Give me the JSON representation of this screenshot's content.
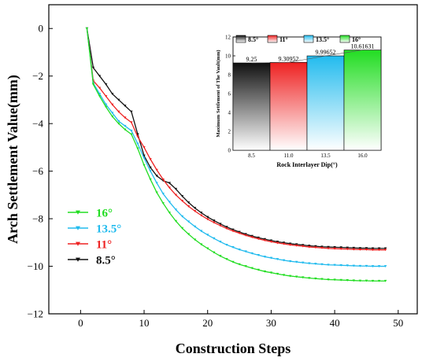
{
  "chart_data": [
    {
      "type": "line",
      "title": "",
      "xlabel": "Construction Steps",
      "ylabel": "Arch Settlement Value(mm)",
      "xlim": [
        -5,
        53
      ],
      "ylim": [
        -12,
        1
      ],
      "xticks": [
        0,
        10,
        20,
        30,
        40,
        50
      ],
      "yticks": [
        0,
        -2,
        -4,
        -6,
        -8,
        -10,
        -12
      ],
      "grid": false,
      "legend": "left",
      "series": [
        {
          "name": "16°",
          "color": "#22dd22",
          "marker": "triangle-down",
          "x": [
            1,
            2,
            3,
            4,
            5,
            6,
            7,
            8,
            9,
            10,
            11,
            12,
            13,
            14,
            15,
            16,
            17,
            18,
            19,
            20,
            21,
            22,
            23,
            24,
            25,
            26,
            27,
            28,
            29,
            30,
            31,
            32,
            33,
            34,
            35,
            36,
            37,
            38,
            39,
            40,
            41,
            42,
            43,
            44,
            45,
            46,
            47,
            48
          ],
          "y": [
            0,
            -2.35,
            -2.85,
            -3.3,
            -3.7,
            -4.0,
            -4.25,
            -4.45,
            -5.05,
            -5.75,
            -6.35,
            -6.9,
            -7.35,
            -7.75,
            -8.1,
            -8.4,
            -8.65,
            -8.88,
            -9.08,
            -9.25,
            -9.42,
            -9.57,
            -9.7,
            -9.82,
            -9.92,
            -10.0,
            -10.08,
            -10.15,
            -10.22,
            -10.27,
            -10.32,
            -10.37,
            -10.41,
            -10.44,
            -10.47,
            -10.5,
            -10.52,
            -10.54,
            -10.56,
            -10.57,
            -10.58,
            -10.59,
            -10.6,
            -10.61,
            -10.61,
            -10.62,
            -10.62,
            -10.62
          ]
        },
        {
          "name": "13.5°",
          "color": "#22bbee",
          "marker": "triangle-down",
          "x": [
            1,
            2,
            3,
            4,
            5,
            6,
            7,
            8,
            9,
            10,
            11,
            12,
            13,
            14,
            15,
            16,
            17,
            18,
            19,
            20,
            21,
            22,
            23,
            24,
            25,
            26,
            27,
            28,
            29,
            30,
            31,
            32,
            33,
            34,
            35,
            36,
            37,
            38,
            39,
            40,
            41,
            42,
            43,
            44,
            45,
            46,
            47,
            48
          ],
          "y": [
            0,
            -2.3,
            -2.75,
            -3.2,
            -3.55,
            -3.9,
            -4.1,
            -4.3,
            -4.85,
            -5.45,
            -6.0,
            -6.5,
            -6.95,
            -7.3,
            -7.62,
            -7.9,
            -8.12,
            -8.33,
            -8.52,
            -8.68,
            -8.83,
            -8.97,
            -9.1,
            -9.2,
            -9.3,
            -9.38,
            -9.46,
            -9.53,
            -9.6,
            -9.65,
            -9.7,
            -9.75,
            -9.79,
            -9.82,
            -9.85,
            -9.88,
            -9.9,
            -9.92,
            -9.94,
            -9.95,
            -9.96,
            -9.97,
            -9.98,
            -9.99,
            -9.99,
            -10.0,
            -10.0,
            -10.0
          ]
        },
        {
          "name": "11°",
          "color": "#ee2222",
          "marker": "triangle-down",
          "x": [
            1,
            2,
            3,
            4,
            5,
            6,
            7,
            8,
            9,
            10,
            11,
            12,
            13,
            14,
            15,
            16,
            17,
            18,
            19,
            20,
            21,
            22,
            23,
            24,
            25,
            26,
            27,
            28,
            29,
            30,
            31,
            32,
            33,
            34,
            35,
            36,
            37,
            38,
            39,
            40,
            41,
            42,
            43,
            44,
            45,
            46,
            47,
            48
          ],
          "y": [
            0,
            -2.2,
            -2.5,
            -2.85,
            -3.2,
            -3.5,
            -3.75,
            -3.95,
            -4.55,
            -5.0,
            -5.5,
            -5.95,
            -6.35,
            -6.7,
            -7.0,
            -7.25,
            -7.48,
            -7.68,
            -7.86,
            -8.02,
            -8.16,
            -8.29,
            -8.41,
            -8.52,
            -8.61,
            -8.7,
            -8.78,
            -8.85,
            -8.91,
            -8.97,
            -9.02,
            -9.06,
            -9.1,
            -9.13,
            -9.16,
            -9.19,
            -9.21,
            -9.23,
            -9.25,
            -9.26,
            -9.27,
            -9.28,
            -9.29,
            -9.3,
            -9.3,
            -9.31,
            -9.31,
            -9.31
          ]
        },
        {
          "name": "8.5°",
          "color": "#111111",
          "marker": "triangle-down",
          "x": [
            1,
            2,
            3,
            4,
            5,
            6,
            7,
            8,
            9,
            10,
            11,
            12,
            13,
            14,
            15,
            16,
            17,
            18,
            19,
            20,
            21,
            22,
            23,
            24,
            25,
            26,
            27,
            28,
            29,
            30,
            31,
            32,
            33,
            34,
            35,
            36,
            37,
            38,
            39,
            40,
            41,
            42,
            43,
            44,
            45,
            46,
            47,
            48
          ],
          "y": [
            0,
            -1.65,
            -2.0,
            -2.35,
            -2.75,
            -3.0,
            -3.25,
            -3.5,
            -4.45,
            -5.35,
            -5.85,
            -6.2,
            -6.4,
            -6.5,
            -6.75,
            -7.05,
            -7.32,
            -7.55,
            -7.75,
            -7.93,
            -8.08,
            -8.22,
            -8.35,
            -8.46,
            -8.56,
            -8.65,
            -8.73,
            -8.8,
            -8.86,
            -8.92,
            -8.97,
            -9.01,
            -9.05,
            -9.08,
            -9.11,
            -9.14,
            -9.16,
            -9.18,
            -9.19,
            -9.2,
            -9.21,
            -9.22,
            -9.23,
            -9.24,
            -9.24,
            -9.25,
            -9.25,
            -9.25
          ]
        }
      ]
    },
    {
      "type": "bar",
      "title": "",
      "xlabel": "Rock Interlayer Dip(°)",
      "ylabel": "Maximum Settlement of The Vault(mm)",
      "ylim": [
        0,
        12
      ],
      "yticks": [
        0,
        2,
        4,
        6,
        8,
        10,
        12
      ],
      "grid": false,
      "legend": "top",
      "categories": [
        "8.5",
        "11.0",
        "13.5",
        "16.0"
      ],
      "legend_labels": [
        "8.5°",
        "11°",
        "13.5°",
        "16°"
      ],
      "values": [
        9.25,
        9.30952,
        9.99652,
        10.61631
      ],
      "value_labels": [
        "9.25",
        "9.30952",
        "9.99652",
        "10.61631"
      ],
      "colors": [
        "#111111",
        "#ee2222",
        "#22bbee",
        "#22dd22"
      ]
    }
  ]
}
